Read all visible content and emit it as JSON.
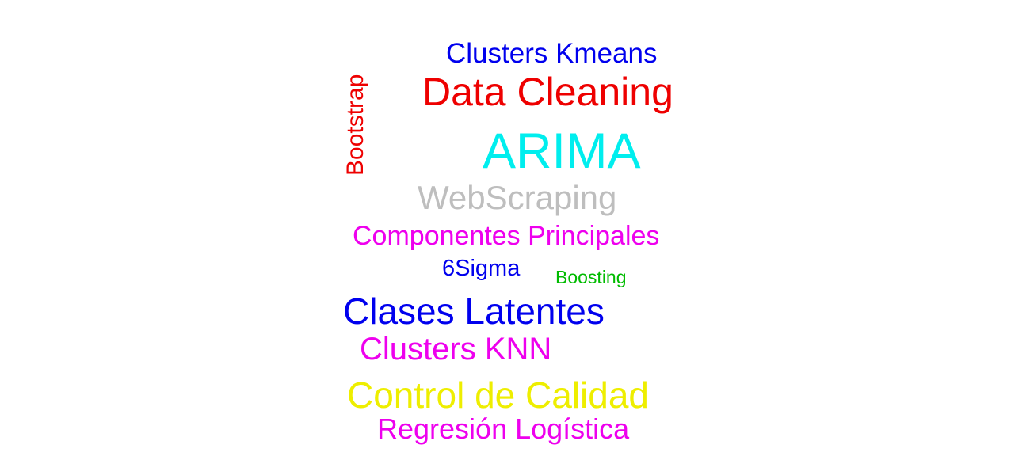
{
  "words": [
    {
      "text": "Clusters Kmeans",
      "color": "#0000ee"
    },
    {
      "text": "Data Cleaning",
      "color": "#ee0000"
    },
    {
      "text": "Bootstrap",
      "color": "#ee0000"
    },
    {
      "text": "ARIMA",
      "color": "#00eeee"
    },
    {
      "text": "WebScraping",
      "color": "#bebebe"
    },
    {
      "text": "Componentes Principales",
      "color": "#ee00ee"
    },
    {
      "text": "6Sigma",
      "color": "#0000ee"
    },
    {
      "text": "Boosting",
      "color": "#00bb00"
    },
    {
      "text": "Clases Latentes",
      "color": "#0000ee"
    },
    {
      "text": "Clusters KNN",
      "color": "#ee00ee"
    },
    {
      "text": "Control de Calidad",
      "color": "#eeee00"
    },
    {
      "text": "Regresión Logística",
      "color": "#ee00ee"
    }
  ]
}
